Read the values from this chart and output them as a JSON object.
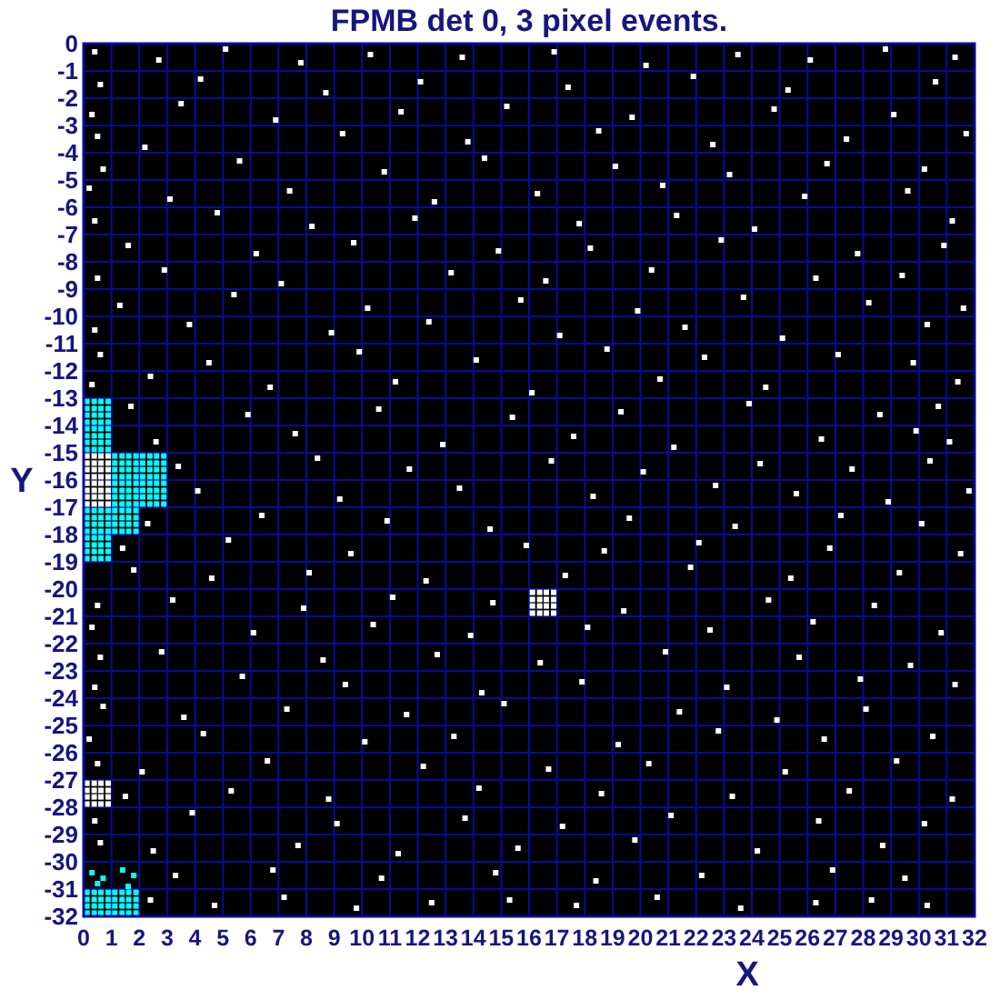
{
  "chart_data": {
    "type": "scatter",
    "title": "FPMB det 0, 3 pixel events.",
    "xlabel": "X",
    "ylabel": "Y",
    "xlim": [
      0,
      32
    ],
    "ylim": [
      -32,
      0
    ],
    "xticks": [
      0,
      1,
      2,
      3,
      4,
      5,
      6,
      7,
      8,
      9,
      10,
      11,
      12,
      13,
      14,
      15,
      16,
      17,
      18,
      19,
      20,
      21,
      22,
      23,
      24,
      25,
      26,
      27,
      28,
      29,
      30,
      31,
      32
    ],
    "yticks": [
      0,
      -1,
      -2,
      -3,
      -4,
      -5,
      -6,
      -7,
      -8,
      -9,
      -10,
      -11,
      -12,
      -13,
      -14,
      -15,
      -16,
      -17,
      -18,
      -19,
      -20,
      -21,
      -22,
      -23,
      -24,
      -25,
      -26,
      -27,
      -28,
      -29,
      -30,
      -31,
      -32
    ],
    "grid": true,
    "marker": "square",
    "series": [
      {
        "color": "#ffffff",
        "x": [
          0.4,
          2.7,
          5.1,
          7.8,
          10.3,
          13.6,
          16.9,
          20.2,
          23.5,
          26.1,
          28.8,
          31.3,
          0.6,
          4.2,
          8.7,
          12.1,
          17.4,
          21.9,
          25.3,
          30.6,
          0.3,
          3.5,
          6.9,
          11.4,
          15.2,
          19.7,
          24.8,
          29.1,
          0.5,
          2.2,
          9.3,
          13.8,
          18.5,
          22.6,
          27.4,
          31.7,
          0.7,
          5.6,
          10.8,
          14.4,
          19.1,
          23.2,
          26.7,
          30.2,
          0.2,
          3.1,
          7.4,
          12.6,
          16.3,
          20.8,
          25.9,
          29.6,
          0.4,
          4.8,
          8.2,
          11.9,
          17.8,
          21.3,
          24.1,
          31.2,
          1.6,
          6.2,
          9.7,
          14.9,
          18.2,
          22.9,
          27.8,
          30.9,
          0.5,
          2.9,
          7.1,
          13.2,
          16.6,
          20.4,
          26.3,
          29.4,
          1.3,
          5.4,
          10.2,
          15.7,
          19.9,
          23.7,
          28.2,
          31.6,
          0.4,
          3.8,
          8.9,
          12.4,
          17.1,
          21.6,
          25.1,
          30.3,
          0.6,
          4.5,
          9.9,
          14.1,
          18.8,
          22.3,
          27.1,
          29.8,
          0.3,
          2.4,
          6.7,
          11.2,
          16.1,
          20.7,
          24.5,
          31.4,
          1.7,
          5.9,
          10.6,
          15.4,
          19.3,
          23.9,
          28.6,
          30.7,
          2.6,
          7.6,
          12.9,
          17.6,
          21.2,
          26.5,
          29.9,
          31.1,
          3.4,
          8.4,
          11.7,
          16.8,
          20.1,
          24.3,
          27.6,
          30.4,
          4.1,
          9.2,
          13.5,
          18.3,
          22.7,
          25.6,
          28.9,
          31.8,
          2.3,
          6.4,
          10.9,
          14.6,
          19.6,
          23.4,
          27.2,
          30.1,
          1.4,
          5.2,
          9.6,
          15.9,
          18.7,
          22.1,
          26.8,
          31.5,
          1.8,
          4.6,
          8.1,
          12.3,
          17.3,
          21.8,
          25.4,
          29.3,
          0.5,
          3.2,
          7.9,
          11.1,
          14.7,
          19.4,
          24.6,
          28.4,
          0.3,
          6.1,
          10.4,
          13.9,
          18.1,
          22.5,
          26.2,
          30.8,
          0.6,
          2.8,
          8.6,
          12.7,
          16.4,
          20.9,
          25.7,
          29.7,
          0.4,
          5.7,
          9.4,
          14.3,
          17.9,
          23.1,
          27.9,
          31.3,
          0.7,
          3.6,
          7.3,
          11.6,
          15.1,
          21.4,
          24.9,
          28.1,
          0.2,
          4.3,
          10.1,
          13.3,
          19.2,
          22.8,
          26.6,
          30.5,
          0.5,
          2.1,
          6.6,
          12.2,
          16.7,
          20.3,
          25.2,
          29.2,
          1.5,
          5.3,
          8.8,
          14.2,
          18.6,
          23.3,
          27.5,
          31.2,
          0.4,
          3.9,
          9.1,
          13.7,
          17.2,
          21.1,
          26.4,
          30.2,
          0.6,
          2.5,
          7.7,
          11.3,
          15.6,
          19.8,
          24.2,
          28.7,
          3.3,
          6.8,
          10.7,
          14.8,
          18.4,
          22.2,
          26.9,
          29.5,
          2.4,
          4.7,
          7.2,
          9.8,
          12.5,
          15.3,
          17.7,
          20.6,
          23.6,
          26.3,
          28.3,
          30.3,
          0.12,
          0.38,
          0.62,
          0.88,
          0.12,
          0.38,
          0.62,
          0.88,
          0.12,
          0.38,
          0.62,
          0.88,
          0.12,
          0.38,
          0.62,
          0.88,
          0.12,
          0.38,
          0.62,
          0.88,
          0.12,
          0.38,
          0.62,
          0.88,
          0.12,
          0.38,
          0.62,
          0.88,
          0.12,
          0.38,
          0.62,
          0.88,
          0.12,
          0.38,
          0.62,
          0.88,
          0.12,
          0.38,
          0.62,
          0.88,
          0.12,
          0.38,
          0.62,
          0.88,
          0.12,
          0.38,
          0.62,
          0.88,
          16.12,
          16.38,
          16.62,
          16.88,
          16.12,
          16.38,
          16.62,
          16.88,
          16.12,
          16.38,
          16.62,
          16.88,
          16.12,
          16.38,
          16.62,
          16.88
        ],
        "values": [
          -0.3,
          -0.6,
          -0.2,
          -0.7,
          -0.4,
          -0.5,
          -0.3,
          -0.8,
          -0.4,
          -0.6,
          -0.2,
          -0.5,
          -1.5,
          -1.3,
          -1.8,
          -1.4,
          -1.6,
          -1.2,
          -1.7,
          -1.4,
          -2.6,
          -2.2,
          -2.8,
          -2.5,
          -2.3,
          -2.7,
          -2.4,
          -2.6,
          -3.4,
          -3.8,
          -3.3,
          -3.6,
          -3.2,
          -3.7,
          -3.5,
          -3.3,
          -4.6,
          -4.3,
          -4.7,
          -4.2,
          -4.5,
          -4.8,
          -4.4,
          -4.6,
          -5.3,
          -5.7,
          -5.4,
          -5.8,
          -5.5,
          -5.2,
          -5.6,
          -5.4,
          -6.5,
          -6.2,
          -6.7,
          -6.4,
          -6.6,
          -6.3,
          -6.8,
          -6.5,
          -7.4,
          -7.7,
          -7.3,
          -7.6,
          -7.5,
          -7.2,
          -7.7,
          -7.4,
          -8.6,
          -8.3,
          -8.8,
          -8.4,
          -8.7,
          -8.3,
          -8.6,
          -8.5,
          -9.6,
          -9.2,
          -9.7,
          -9.4,
          -9.8,
          -9.3,
          -9.5,
          -9.7,
          -10.5,
          -10.3,
          -10.6,
          -10.2,
          -10.7,
          -10.4,
          -10.8,
          -10.3,
          -11.4,
          -11.7,
          -11.3,
          -11.6,
          -11.2,
          -11.5,
          -11.4,
          -11.7,
          -12.5,
          -12.2,
          -12.6,
          -12.4,
          -12.8,
          -12.3,
          -12.6,
          -12.4,
          -13.3,
          -13.6,
          -13.4,
          -13.7,
          -13.5,
          -13.2,
          -13.6,
          -13.3,
          -14.6,
          -14.3,
          -14.7,
          -14.4,
          -14.8,
          -14.5,
          -14.2,
          -14.6,
          -15.5,
          -15.2,
          -15.6,
          -15.3,
          -15.7,
          -15.4,
          -15.6,
          -15.3,
          -16.4,
          -16.7,
          -16.3,
          -16.6,
          -16.2,
          -16.5,
          -16.8,
          -16.4,
          -17.6,
          -17.3,
          -17.5,
          -17.8,
          -17.4,
          -17.7,
          -17.3,
          -17.6,
          -18.5,
          -18.2,
          -18.7,
          -18.4,
          -18.6,
          -18.3,
          -18.5,
          -18.7,
          -19.3,
          -19.6,
          -19.4,
          -19.7,
          -19.5,
          -19.2,
          -19.6,
          -19.4,
          -20.6,
          -20.4,
          -20.7,
          -20.3,
          -20.5,
          -20.8,
          -20.4,
          -20.6,
          -21.4,
          -21.6,
          -21.3,
          -21.7,
          -21.4,
          -21.5,
          -21.2,
          -21.6,
          -22.5,
          -22.3,
          -22.6,
          -22.4,
          -22.7,
          -22.3,
          -22.5,
          -22.8,
          -23.6,
          -23.2,
          -23.5,
          -23.8,
          -23.4,
          -23.6,
          -23.3,
          -23.5,
          -24.3,
          -24.7,
          -24.4,
          -24.6,
          -24.2,
          -24.5,
          -24.8,
          -24.4,
          -25.5,
          -25.3,
          -25.6,
          -25.4,
          -25.7,
          -25.2,
          -25.5,
          -25.4,
          -26.4,
          -26.7,
          -26.3,
          -26.5,
          -26.6,
          -26.4,
          -26.7,
          -26.3,
          -27.6,
          -27.4,
          -27.7,
          -27.3,
          -27.5,
          -27.6,
          -27.4,
          -27.7,
          -28.5,
          -28.2,
          -28.6,
          -28.4,
          -28.7,
          -28.3,
          -28.5,
          -28.6,
          -29.3,
          -29.6,
          -29.4,
          -29.7,
          -29.5,
          -29.2,
          -29.6,
          -29.4,
          -30.5,
          -30.3,
          -30.6,
          -30.4,
          -30.7,
          -30.5,
          -30.3,
          -30.6,
          -31.4,
          -31.6,
          -31.3,
          -31.7,
          -31.5,
          -31.4,
          -31.6,
          -31.3,
          -31.7,
          -31.5,
          -31.4,
          -31.6,
          -15.12,
          -15.12,
          -15.12,
          -15.12,
          -15.38,
          -15.38,
          -15.38,
          -15.38,
          -15.62,
          -15.62,
          -15.62,
          -15.62,
          -15.88,
          -15.88,
          -15.88,
          -15.88,
          -16.12,
          -16.12,
          -16.12,
          -16.12,
          -16.38,
          -16.38,
          -16.38,
          -16.38,
          -16.62,
          -16.62,
          -16.62,
          -16.62,
          -16.88,
          -16.88,
          -16.88,
          -16.88,
          -27.12,
          -27.12,
          -27.12,
          -27.12,
          -27.38,
          -27.38,
          -27.38,
          -27.38,
          -27.62,
          -27.62,
          -27.62,
          -27.62,
          -27.88,
          -27.88,
          -27.88,
          -27.88,
          -20.12,
          -20.12,
          -20.12,
          -20.12,
          -20.38,
          -20.38,
          -20.38,
          -20.38,
          -20.62,
          -20.62,
          -20.62,
          -20.62,
          -20.88,
          -20.88,
          -20.88,
          -20.88
        ]
      },
      {
        "color": "#00ffff",
        "x": [
          0.12,
          0.38,
          0.62,
          0.88,
          0.12,
          0.38,
          0.62,
          0.88,
          0.12,
          0.38,
          0.62,
          0.88,
          0.12,
          0.38,
          0.62,
          0.88,
          0.12,
          0.38,
          0.62,
          0.88,
          0.12,
          0.38,
          0.62,
          0.88,
          0.12,
          0.38,
          0.62,
          0.88,
          0.12,
          0.38,
          0.62,
          0.88,
          1.12,
          1.38,
          1.62,
          1.88,
          1.12,
          1.38,
          1.62,
          1.88,
          1.12,
          1.38,
          1.62,
          1.88,
          1.12,
          1.38,
          1.62,
          1.88,
          2.12,
          2.38,
          2.62,
          2.88,
          2.12,
          2.38,
          2.62,
          2.88,
          2.12,
          2.38,
          2.62,
          2.88,
          2.12,
          2.38,
          2.62,
          2.88,
          1.12,
          1.38,
          1.62,
          1.88,
          1.12,
          1.38,
          1.62,
          1.88,
          1.12,
          1.38,
          1.62,
          1.88,
          1.12,
          1.38,
          1.62,
          1.88,
          2.12,
          2.38,
          2.62,
          2.88,
          2.12,
          2.38,
          2.62,
          2.88,
          2.12,
          2.38,
          2.62,
          2.88,
          2.12,
          2.38,
          2.62,
          2.88,
          0.12,
          0.38,
          0.62,
          0.88,
          0.12,
          0.38,
          0.62,
          0.88,
          0.12,
          0.38,
          0.62,
          0.88,
          0.12,
          0.38,
          0.62,
          0.88,
          1.12,
          1.38,
          1.62,
          1.88,
          1.12,
          1.38,
          1.62,
          1.88,
          1.12,
          1.38,
          1.62,
          1.88,
          1.12,
          1.38,
          1.62,
          1.88,
          0.12,
          0.38,
          0.62,
          0.88,
          0.12,
          0.38,
          0.62,
          0.88,
          0.12,
          0.38,
          0.62,
          0.88,
          0.12,
          0.38,
          0.62,
          0.88,
          0.12,
          0.38,
          0.62,
          0.88,
          0.12,
          0.38,
          0.62,
          0.88,
          0.12,
          0.38,
          0.62,
          0.88,
          0.12,
          0.38,
          0.62,
          0.88,
          1.12,
          1.38,
          1.62,
          1.88,
          1.12,
          1.38,
          1.62,
          1.88,
          1.12,
          1.38,
          1.62,
          1.88,
          1.12,
          1.38,
          1.62,
          1.88,
          0.3,
          0.7,
          0.5,
          1.4,
          1.8,
          1.6
        ],
        "values": [
          -13.12,
          -13.12,
          -13.12,
          -13.12,
          -13.38,
          -13.38,
          -13.38,
          -13.38,
          -13.62,
          -13.62,
          -13.62,
          -13.62,
          -13.88,
          -13.88,
          -13.88,
          -13.88,
          -14.12,
          -14.12,
          -14.12,
          -14.12,
          -14.38,
          -14.38,
          -14.38,
          -14.38,
          -14.62,
          -14.62,
          -14.62,
          -14.62,
          -14.88,
          -14.88,
          -14.88,
          -14.88,
          -15.12,
          -15.12,
          -15.12,
          -15.12,
          -15.38,
          -15.38,
          -15.38,
          -15.38,
          -15.62,
          -15.62,
          -15.62,
          -15.62,
          -15.88,
          -15.88,
          -15.88,
          -15.88,
          -15.12,
          -15.12,
          -15.12,
          -15.12,
          -15.38,
          -15.38,
          -15.38,
          -15.38,
          -15.62,
          -15.62,
          -15.62,
          -15.62,
          -15.88,
          -15.88,
          -15.88,
          -15.88,
          -16.12,
          -16.12,
          -16.12,
          -16.12,
          -16.38,
          -16.38,
          -16.38,
          -16.38,
          -16.62,
          -16.62,
          -16.62,
          -16.62,
          -16.88,
          -16.88,
          -16.88,
          -16.88,
          -16.12,
          -16.12,
          -16.12,
          -16.12,
          -16.38,
          -16.38,
          -16.38,
          -16.38,
          -16.62,
          -16.62,
          -16.62,
          -16.62,
          -16.88,
          -16.88,
          -16.88,
          -16.88,
          -17.12,
          -17.12,
          -17.12,
          -17.12,
          -17.38,
          -17.38,
          -17.38,
          -17.38,
          -17.62,
          -17.62,
          -17.62,
          -17.62,
          -17.88,
          -17.88,
          -17.88,
          -17.88,
          -17.12,
          -17.12,
          -17.12,
          -17.12,
          -17.38,
          -17.38,
          -17.38,
          -17.38,
          -17.62,
          -17.62,
          -17.62,
          -17.62,
          -17.88,
          -17.88,
          -17.88,
          -17.88,
          -18.12,
          -18.12,
          -18.12,
          -18.12,
          -18.38,
          -18.38,
          -18.38,
          -18.38,
          -18.62,
          -18.62,
          -18.62,
          -18.62,
          -18.88,
          -18.88,
          -18.88,
          -18.88,
          -31.12,
          -31.12,
          -31.12,
          -31.12,
          -31.38,
          -31.38,
          -31.38,
          -31.38,
          -31.62,
          -31.62,
          -31.62,
          -31.62,
          -31.88,
          -31.88,
          -31.88,
          -31.88,
          -31.12,
          -31.12,
          -31.12,
          -31.12,
          -31.38,
          -31.38,
          -31.38,
          -31.38,
          -31.62,
          -31.62,
          -31.62,
          -31.62,
          -31.88,
          -31.88,
          -31.88,
          -31.88,
          -30.4,
          -30.6,
          -30.8,
          -30.3,
          -30.5,
          -30.9
        ]
      }
    ]
  }
}
